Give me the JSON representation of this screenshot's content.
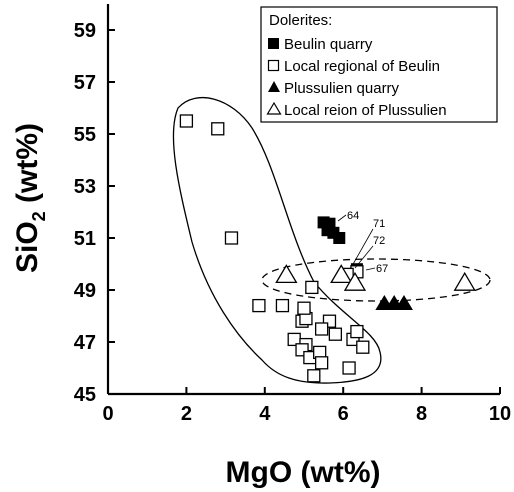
{
  "chart_data": {
    "type": "scatter",
    "xlabel": "MgO (wt%)",
    "ylabel": {
      "main": "SiO",
      "sub": "2",
      "rest": " (wt%)"
    },
    "xlim": [
      0,
      10
    ],
    "ylim": [
      45,
      60
    ],
    "xticks": [
      "0",
      "2",
      "4",
      "6",
      "8",
      "10"
    ],
    "yticks": [
      "45",
      "47",
      "49",
      "51",
      "53",
      "55",
      "57",
      "59"
    ],
    "legend": {
      "title": "Dolerites:",
      "position": "top-right",
      "items": [
        {
          "label": "Beulin quarry",
          "marker": "filled-square"
        },
        {
          "label": "Local regional of Beulin",
          "marker": "open-square"
        },
        {
          "label": "Plussulien quarry",
          "marker": "filled-triangle"
        },
        {
          "label": "Local reion of Plussulien",
          "marker": "open-triangle"
        }
      ]
    },
    "series": [
      {
        "name": "Beulin quarry",
        "marker": "filled-square",
        "points": [
          [
            5.5,
            51.6
          ],
          [
            5.65,
            51.55
          ],
          [
            5.6,
            51.3
          ],
          [
            5.75,
            51.2
          ],
          [
            5.9,
            51.0
          ],
          [
            6.35,
            49.8
          ]
        ]
      },
      {
        "name": "Local regional of Beulin",
        "marker": "open-square",
        "points": [
          [
            2.0,
            55.5
          ],
          [
            2.8,
            55.2
          ],
          [
            3.15,
            51.0
          ],
          [
            3.85,
            48.4
          ],
          [
            4.45,
            48.4
          ],
          [
            5.0,
            48.0
          ],
          [
            4.95,
            47.8
          ],
          [
            5.05,
            47.9
          ],
          [
            5.0,
            48.3
          ],
          [
            5.2,
            49.1
          ],
          [
            5.65,
            47.8
          ],
          [
            5.45,
            47.5
          ],
          [
            4.75,
            47.1
          ],
          [
            5.05,
            46.9
          ],
          [
            4.95,
            46.7
          ],
          [
            5.15,
            46.4
          ],
          [
            5.4,
            46.6
          ],
          [
            5.45,
            46.2
          ],
          [
            5.25,
            45.7
          ],
          [
            5.8,
            47.3
          ],
          [
            6.25,
            47.1
          ],
          [
            6.35,
            47.4
          ],
          [
            6.15,
            46.0
          ],
          [
            6.5,
            46.8
          ],
          [
            6.35,
            49.7
          ],
          [
            6.1,
            49.6
          ]
        ]
      },
      {
        "name": "Plussulien quarry",
        "marker": "filled-triangle",
        "points": [
          [
            7.05,
            48.5
          ],
          [
            7.3,
            48.5
          ],
          [
            7.55,
            48.5
          ]
        ]
      },
      {
        "name": "Local reion of Plussulien",
        "marker": "open-triangle",
        "points": [
          [
            4.55,
            49.6
          ],
          [
            5.95,
            49.6
          ],
          [
            6.3,
            49.3
          ],
          [
            9.1,
            49.3
          ]
        ]
      }
    ],
    "annotations": [
      "64",
      "71",
      "72",
      "67"
    ]
  }
}
